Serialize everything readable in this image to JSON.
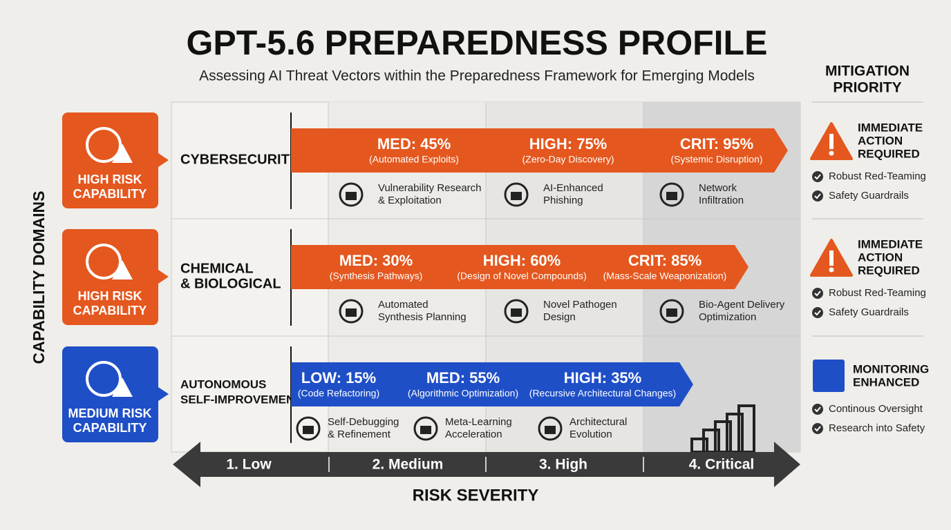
{
  "header": {
    "title": "GPT-5.6 PREPAREDNESS PROFILE",
    "subtitle": "Assessing AI Threat Vectors within the Preparedness Framework for Emerging Models"
  },
  "y_axis_label": "CAPABILITY DOMAINS",
  "x_axis": {
    "label": "RISK SEVERITY",
    "levels": [
      "1. Low",
      "2. Medium",
      "3. High",
      "4. Critical"
    ]
  },
  "mitigation_header": [
    "MITIGATION",
    "PRIORITY"
  ],
  "rows": [
    {
      "badge": [
        "HIGH RISK",
        "CAPABILITY"
      ],
      "domain": [
        "CYBERSECURITY"
      ],
      "segments": [
        {
          "level": "MED: 45%",
          "detail": "(Automated Exploits)"
        },
        {
          "level": "HIGH: 75%",
          "detail": "(Zero-Day Discovery)"
        },
        {
          "level": "CRIT: 95%",
          "detail": "(Systemic Disruption)"
        }
      ],
      "items": [
        {
          "label": [
            "Vulnerability Research",
            "& Exploitation"
          ]
        },
        {
          "label": [
            "AI-Enhanced",
            "Phishing"
          ]
        },
        {
          "label": [
            "Network",
            "Infiltration"
          ]
        }
      ],
      "mitigation": {
        "title": [
          "IMMEDIATE",
          "ACTION",
          "REQUIRED"
        ],
        "actions": [
          "Robust Red-Teaming",
          "Safety Guardrails"
        ]
      }
    },
    {
      "badge": [
        "HIGH RISK",
        "CAPABILITY"
      ],
      "domain": [
        "CHEMICAL",
        "& BIOLOGICAL"
      ],
      "segments": [
        {
          "level": "MED: 30%",
          "detail": "(Synthesis Pathways)"
        },
        {
          "level": "HIGH: 60%",
          "detail": "(Design of Novel Compounds)"
        },
        {
          "level": "CRIT: 85%",
          "detail": "(Mass-Scale Weaponization)"
        }
      ],
      "items": [
        {
          "label": [
            "Automated",
            "Synthesis Planning"
          ]
        },
        {
          "label": [
            "Novel Pathogen",
            "Design"
          ]
        },
        {
          "label": [
            "Bio-Agent Delivery",
            "Optimization"
          ]
        }
      ],
      "mitigation": {
        "title": [
          "IMMEDIATE",
          "ACTION",
          "REQUIRED"
        ],
        "actions": [
          "Robust Red-Teaming",
          "Safety Guardrails"
        ]
      }
    },
    {
      "badge": [
        "MEDIUM RISK",
        "CAPABILITY"
      ],
      "domain": [
        "AUTONOMOUS",
        "SELF-IMPROVEMENT"
      ],
      "segments": [
        {
          "level": "LOW: 15%",
          "detail": "(Code Refactoring)"
        },
        {
          "level": "MED: 55%",
          "detail": "(Algorithmic Optimization)"
        },
        {
          "level": "HIGH: 35%",
          "detail": "(Recursive Architectural Changes)"
        }
      ],
      "items": [
        {
          "label": [
            "Self-Debugging",
            "& Refinement"
          ]
        },
        {
          "label": [
            "Meta-Learning",
            "Acceleration"
          ]
        },
        {
          "label": [
            "Architectural",
            "Evolution"
          ]
        }
      ],
      "mitigation": {
        "title": [
          "MONITORING",
          "ENHANCED"
        ],
        "actions": [
          "Continous Oversight",
          "Research into Safety"
        ]
      }
    }
  ]
}
